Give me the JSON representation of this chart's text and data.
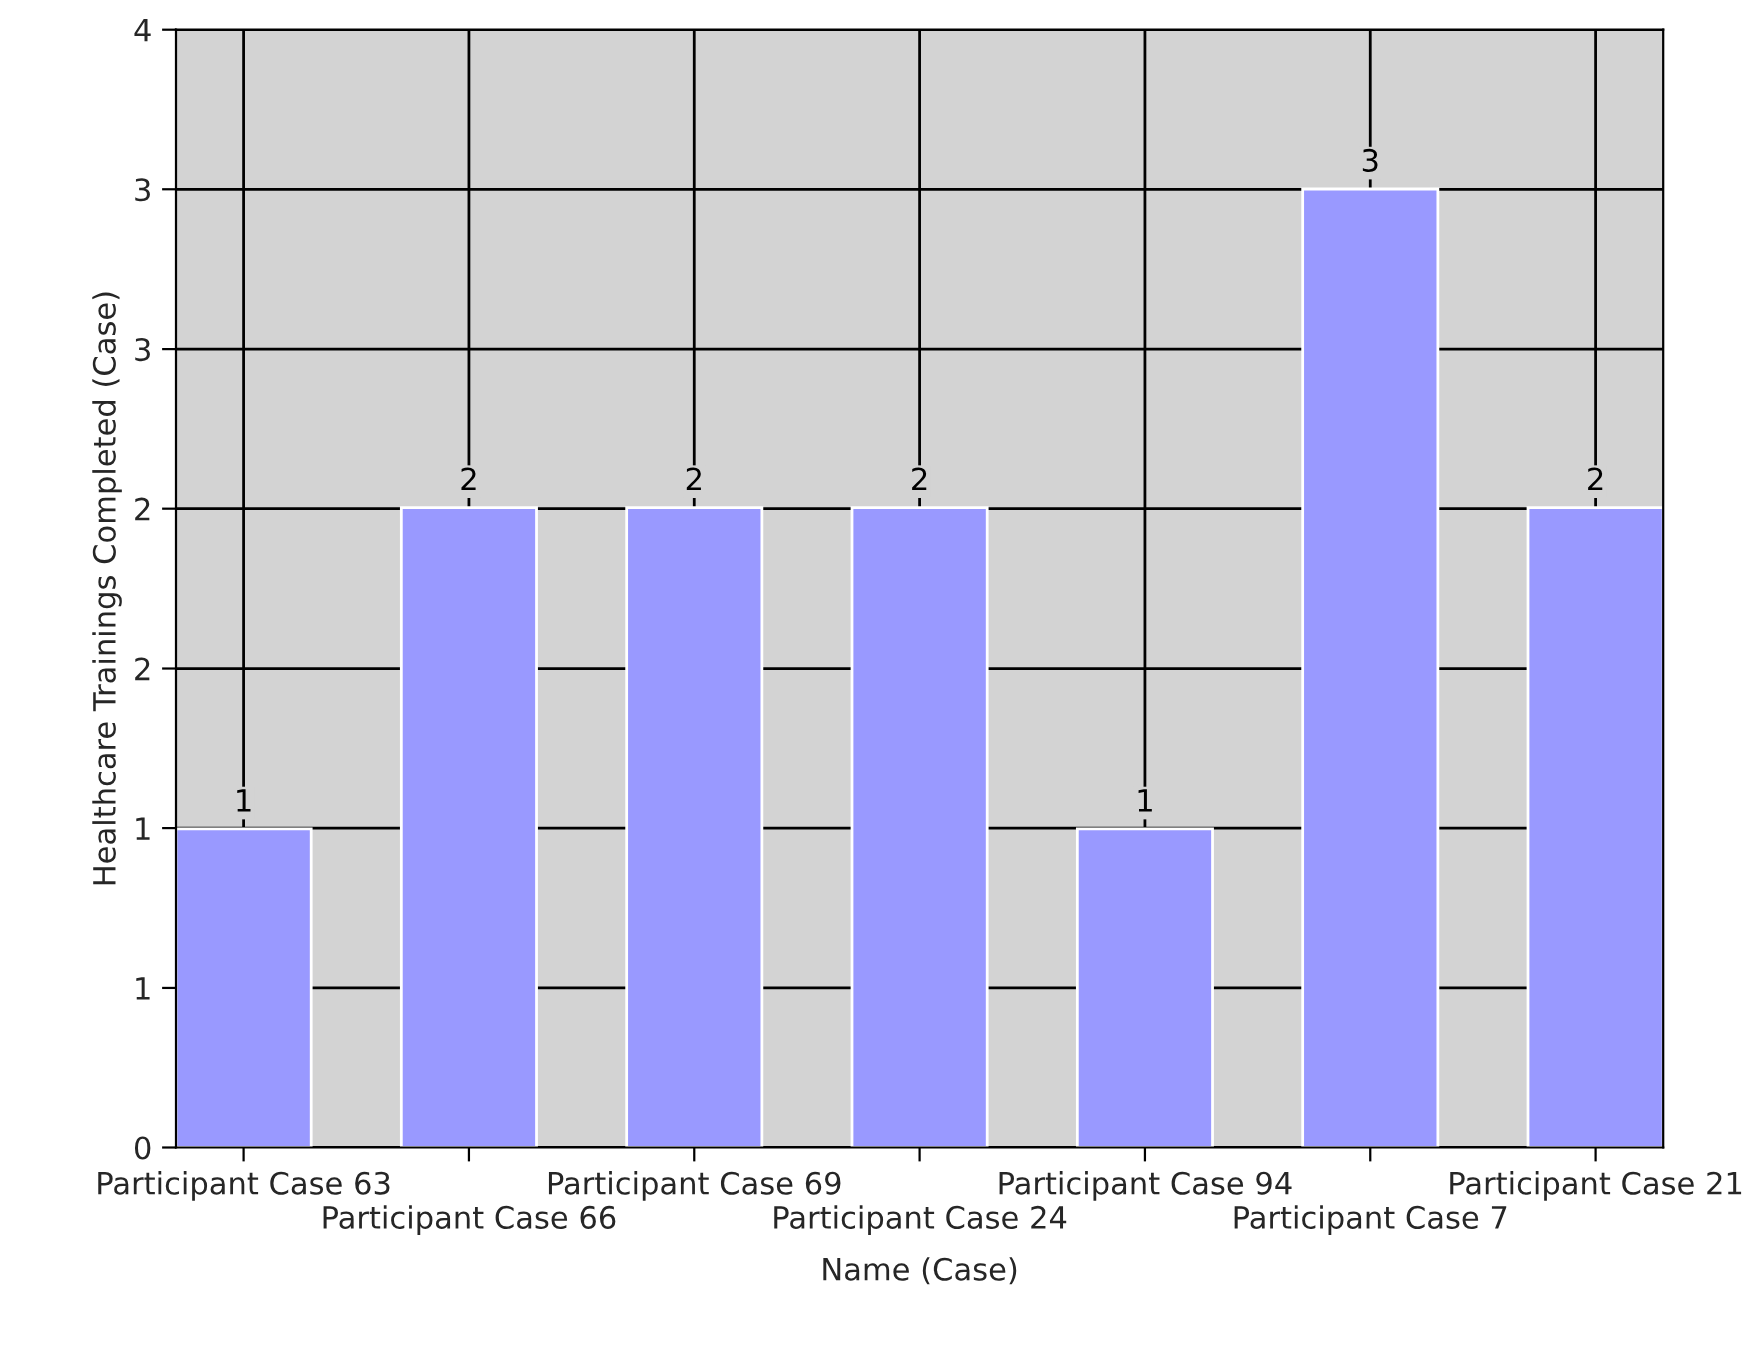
{
  "chart_data": {
    "type": "bar",
    "xlabel": "Name (Case)",
    "ylabel": "Healthcare Trainings Completed (Case)",
    "categories": [
      "Participant Case 63",
      "Participant Case 66",
      "Participant Case 69",
      "Participant Case 24",
      "Participant Case 94",
      "Participant Case 7",
      "Participant Case 21"
    ],
    "values": [
      1.14,
      2.29,
      2.29,
      2.29,
      1.14,
      3.43,
      2.29
    ],
    "value_labels": [
      "1",
      "2",
      "2",
      "2",
      "1",
      "3",
      "2"
    ],
    "color": "#9999ff",
    "ylim": [
      0,
      4
    ],
    "yticks": [
      0,
      {
        "value": 0.571,
        "label": "1"
      },
      {
        "value": 1.143,
        "label": "1"
      },
      {
        "value": 1.714,
        "label": "2"
      },
      {
        "value": 2.286,
        "label": "2"
      },
      {
        "value": 2.857,
        "label": "3"
      },
      {
        "value": 3.429,
        "label": "3"
      },
      4
    ],
    "grid": true,
    "legend": false
  }
}
